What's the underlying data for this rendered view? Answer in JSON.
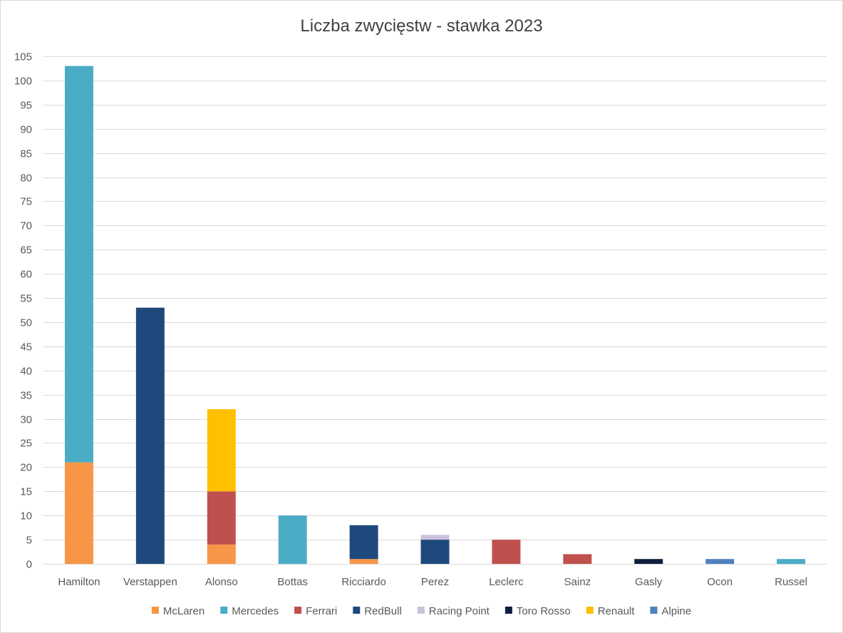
{
  "chart_data": {
    "type": "bar",
    "stacked": true,
    "title": "Liczba zwycięstw - stawka 2023",
    "xlabel": "",
    "ylabel": "",
    "ylim": [
      0,
      105
    ],
    "ytick_step": 5,
    "grid": true,
    "legend_position": "bottom",
    "categories": [
      "Hamilton",
      "Verstappen",
      "Alonso",
      "Bottas",
      "Ricciardo",
      "Perez",
      "Leclerc",
      "Sainz",
      "Gasly",
      "Ocon",
      "Russel"
    ],
    "series": [
      {
        "name": "McLaren",
        "color": "#f79646",
        "values": [
          21,
          0,
          4,
          0,
          1,
          0,
          0,
          0,
          0,
          0,
          0
        ]
      },
      {
        "name": "Mercedes",
        "color": "#4bacc6",
        "values": [
          82,
          0,
          0,
          10,
          0,
          0,
          0,
          0,
          0,
          0,
          1
        ]
      },
      {
        "name": "Ferrari",
        "color": "#c0504d",
        "values": [
          0,
          0,
          11,
          0,
          0,
          0,
          5,
          2,
          0,
          0,
          0
        ]
      },
      {
        "name": "RedBull",
        "color": "#1f497d",
        "values": [
          0,
          53,
          0,
          0,
          7,
          5,
          0,
          0,
          0,
          0,
          0
        ]
      },
      {
        "name": "Racing Point",
        "color": "#ccc1da",
        "values": [
          0,
          0,
          0,
          0,
          0,
          1,
          0,
          0,
          0,
          0,
          0
        ]
      },
      {
        "name": "Toro Rosso",
        "color": "#0f1f3d",
        "values": [
          0,
          0,
          0,
          0,
          0,
          0,
          0,
          0,
          1,
          0,
          0
        ]
      },
      {
        "name": "Renault",
        "color": "#ffc000",
        "values": [
          0,
          0,
          17,
          0,
          0,
          0,
          0,
          0,
          0,
          0,
          0
        ]
      },
      {
        "name": "Alpine",
        "color": "#4f81bd",
        "values": [
          0,
          0,
          0,
          0,
          0,
          0,
          0,
          0,
          0,
          1,
          0
        ]
      }
    ]
  }
}
